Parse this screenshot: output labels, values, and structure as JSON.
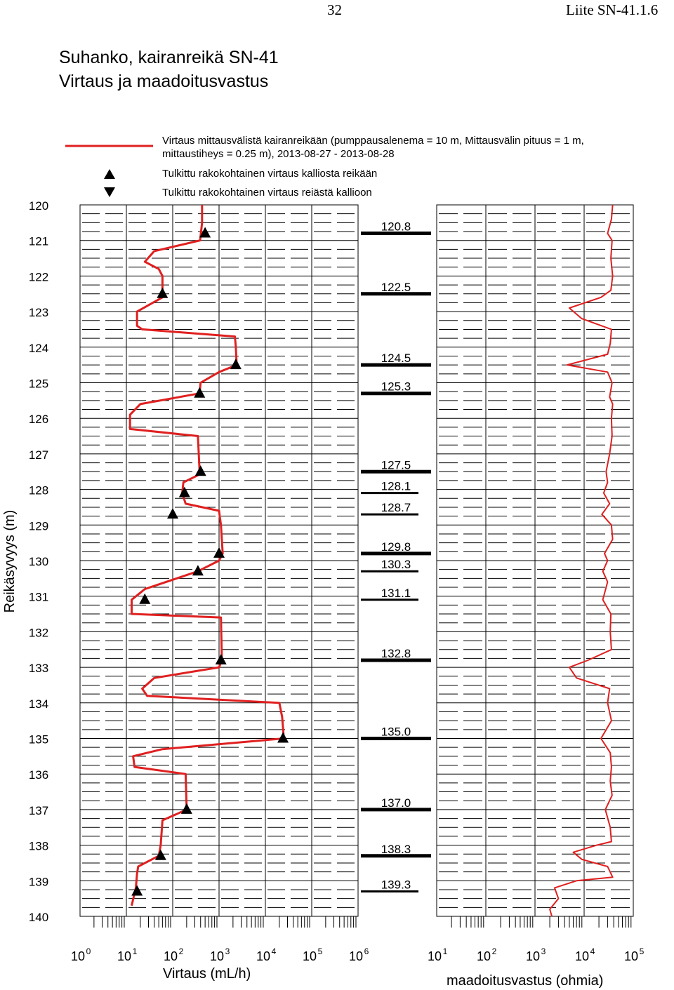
{
  "page": {
    "number": "32",
    "appendix": "Liite SN-41.1.6"
  },
  "title_line1": "Suhanko, kairanreikä SN-41",
  "title_line2": "Virtaus ja maadoitusvastus",
  "colors": {
    "flow": "#e02020",
    "resistance": "#e02020",
    "grid": "#000000",
    "marker": "#000000"
  },
  "legend": {
    "line_label_1": "Virtaus mittausvälistä kairanreikään (pumppausalenema = 10 m, Mittausvälin pituus = 1 m,",
    "line_label_2": "mittaustiheys = 0.25 m), 2013-08-27 - 2013-08-28",
    "up_label": "Tulkittu rakokohtainen virtaus kalliosta reikään",
    "down_label": "Tulkittu rakokohtainen virtaus reiästä kallioon",
    "up_icon": "triangle-up",
    "down_icon": "triangle-down"
  },
  "chart_data": [
    {
      "type": "line",
      "name": "Virtaus",
      "ylabel": "Reikäsyvyys (m)",
      "xlabel": "Virtaus (mL/h)",
      "ylim": [
        120,
        140
      ],
      "y_reversed": true,
      "x_scale": "log",
      "xlim": [
        1,
        1000000
      ],
      "y_ticks": [
        120,
        121,
        122,
        123,
        124,
        125,
        126,
        127,
        128,
        129,
        130,
        131,
        132,
        133,
        134,
        135,
        136,
        137,
        138,
        139,
        140
      ],
      "x_ticks": [
        {
          "base": "10",
          "exp": "0"
        },
        {
          "base": "10",
          "exp": "1"
        },
        {
          "base": "10",
          "exp": "2"
        },
        {
          "base": "10",
          "exp": "3"
        },
        {
          "base": "10",
          "exp": "4"
        },
        {
          "base": "10",
          "exp": "5"
        },
        {
          "base": "10",
          "exp": "6"
        }
      ],
      "profile": [
        [
          120.0,
          430
        ],
        [
          120.5,
          430
        ],
        [
          121.0,
          390
        ],
        [
          121.3,
          40
        ],
        [
          121.6,
          25
        ],
        [
          121.8,
          50
        ],
        [
          122.0,
          60
        ],
        [
          122.6,
          60
        ],
        [
          123.0,
          17
        ],
        [
          123.4,
          17
        ],
        [
          123.5,
          22
        ],
        [
          123.7,
          2200
        ],
        [
          124.0,
          2300
        ],
        [
          124.5,
          2400
        ],
        [
          124.7,
          1000
        ],
        [
          125.0,
          400
        ],
        [
          125.3,
          380
        ],
        [
          125.6,
          20
        ],
        [
          125.9,
          12
        ],
        [
          126.3,
          12
        ],
        [
          126.5,
          350
        ],
        [
          127.5,
          380
        ],
        [
          127.6,
          350
        ],
        [
          127.8,
          170
        ],
        [
          128.1,
          160
        ],
        [
          128.4,
          190
        ],
        [
          128.6,
          1000
        ],
        [
          129.0,
          1100
        ],
        [
          129.8,
          1200
        ],
        [
          130.0,
          1000
        ],
        [
          130.3,
          350
        ],
        [
          130.8,
          25
        ],
        [
          131.1,
          13
        ],
        [
          131.5,
          13
        ],
        [
          131.6,
          1100
        ],
        [
          132.8,
          1150
        ],
        [
          133.0,
          1000
        ],
        [
          133.3,
          40
        ],
        [
          133.6,
          22
        ],
        [
          133.8,
          28
        ],
        [
          134.0,
          20000
        ],
        [
          134.4,
          23000
        ],
        [
          135.0,
          25000
        ],
        [
          135.3,
          60
        ],
        [
          135.5,
          14
        ],
        [
          135.8,
          15
        ],
        [
          136.0,
          190
        ],
        [
          137.0,
          200
        ],
        [
          137.3,
          60
        ],
        [
          138.0,
          55
        ],
        [
          138.3,
          50
        ],
        [
          138.6,
          18
        ],
        [
          138.8,
          17
        ],
        [
          139.2,
          16
        ],
        [
          139.7,
          13
        ]
      ],
      "markers_up": [
        {
          "depth": 120.8,
          "flow": 500
        },
        {
          "depth": 122.5,
          "flow": 60
        },
        {
          "depth": 124.5,
          "flow": 2300
        },
        {
          "depth": 125.3,
          "flow": 380
        },
        {
          "depth": 127.5,
          "flow": 400
        },
        {
          "depth": 128.1,
          "flow": 180
        },
        {
          "depth": 128.7,
          "flow": 100
        },
        {
          "depth": 129.8,
          "flow": 1000
        },
        {
          "depth": 130.3,
          "flow": 350
        },
        {
          "depth": 131.1,
          "flow": 25
        },
        {
          "depth": 132.8,
          "flow": 1100
        },
        {
          "depth": 135.0,
          "flow": 24000
        },
        {
          "depth": 137.0,
          "flow": 200
        },
        {
          "depth": 138.3,
          "flow": 55
        },
        {
          "depth": 139.3,
          "flow": 17
        }
      ],
      "markers_down": []
    },
    {
      "type": "table",
      "name": "fracture depths",
      "items": [
        {
          "depth": 120.8,
          "label": "120.8",
          "bar": "long"
        },
        {
          "depth": 122.5,
          "label": "122.5",
          "bar": "long"
        },
        {
          "depth": 124.5,
          "label": "124.5",
          "bar": "long"
        },
        {
          "depth": 125.3,
          "label": "125.3",
          "bar": "long"
        },
        {
          "depth": 127.5,
          "label": "127.5",
          "bar": "long"
        },
        {
          "depth": 128.1,
          "label": "128.1",
          "bar": "short"
        },
        {
          "depth": 128.7,
          "label": "128.7",
          "bar": "short"
        },
        {
          "depth": 129.8,
          "label": "129.8",
          "bar": "long"
        },
        {
          "depth": 130.3,
          "label": "130.3",
          "bar": "short"
        },
        {
          "depth": 131.1,
          "label": "131.1",
          "bar": "short"
        },
        {
          "depth": 132.8,
          "label": "132.8",
          "bar": "long"
        },
        {
          "depth": 135.0,
          "label": "135.0",
          "bar": "long"
        },
        {
          "depth": 137.0,
          "label": "137.0",
          "bar": "long"
        },
        {
          "depth": 138.3,
          "label": "138.3",
          "bar": "long"
        },
        {
          "depth": 139.3,
          "label": "139.3",
          "bar": "short"
        }
      ]
    },
    {
      "type": "line",
      "name": "maadoitusvastus",
      "xlabel": "maadoitusvastus (ohmia)",
      "x_scale": "log",
      "xlim": [
        10,
        100000
      ],
      "ylim": [
        120,
        140
      ],
      "y_reversed": true,
      "x_ticks": [
        {
          "base": "10",
          "exp": "1"
        },
        {
          "base": "10",
          "exp": "2"
        },
        {
          "base": "10",
          "exp": "3"
        },
        {
          "base": "10",
          "exp": "4"
        },
        {
          "base": "10",
          "exp": "5"
        }
      ],
      "profile": [
        [
          120.0,
          38000
        ],
        [
          120.4,
          36000
        ],
        [
          120.8,
          30000
        ],
        [
          121.0,
          37000
        ],
        [
          121.5,
          35000
        ],
        [
          122.0,
          38000
        ],
        [
          122.4,
          35000
        ],
        [
          122.6,
          22000
        ],
        [
          122.9,
          5000
        ],
        [
          123.2,
          9000
        ],
        [
          123.5,
          36000
        ],
        [
          123.9,
          34000
        ],
        [
          124.2,
          30000
        ],
        [
          124.5,
          4500
        ],
        [
          124.7,
          30000
        ],
        [
          125.0,
          37000
        ],
        [
          125.4,
          33000
        ],
        [
          125.6,
          38000
        ],
        [
          126.0,
          36000
        ],
        [
          126.5,
          37000
        ],
        [
          127.0,
          33000
        ],
        [
          127.5,
          28000
        ],
        [
          127.8,
          30000
        ],
        [
          128.1,
          25000
        ],
        [
          128.4,
          33000
        ],
        [
          128.7,
          23000
        ],
        [
          129.0,
          36000
        ],
        [
          129.4,
          38000
        ],
        [
          129.8,
          26000
        ],
        [
          130.0,
          30000
        ],
        [
          130.3,
          24000
        ],
        [
          130.6,
          30000
        ],
        [
          131.1,
          24000
        ],
        [
          131.5,
          35000
        ],
        [
          132.0,
          34000
        ],
        [
          132.5,
          36000
        ],
        [
          132.8,
          12000
        ],
        [
          133.0,
          5000
        ],
        [
          133.3,
          7000
        ],
        [
          133.6,
          33000
        ],
        [
          134.0,
          30000
        ],
        [
          134.5,
          36000
        ],
        [
          135.0,
          22000
        ],
        [
          135.4,
          34000
        ],
        [
          135.8,
          36000
        ],
        [
          136.2,
          34000
        ],
        [
          136.6,
          37000
        ],
        [
          137.0,
          27000
        ],
        [
          137.5,
          34000
        ],
        [
          137.9,
          36000
        ],
        [
          138.0,
          18000
        ],
        [
          138.2,
          6000
        ],
        [
          138.4,
          9000
        ],
        [
          138.6,
          30000
        ],
        [
          138.9,
          38000
        ],
        [
          139.0,
          7000
        ],
        [
          139.2,
          2500
        ],
        [
          139.5,
          3000
        ],
        [
          139.8,
          2000
        ],
        [
          140.0,
          2200
        ]
      ]
    }
  ]
}
